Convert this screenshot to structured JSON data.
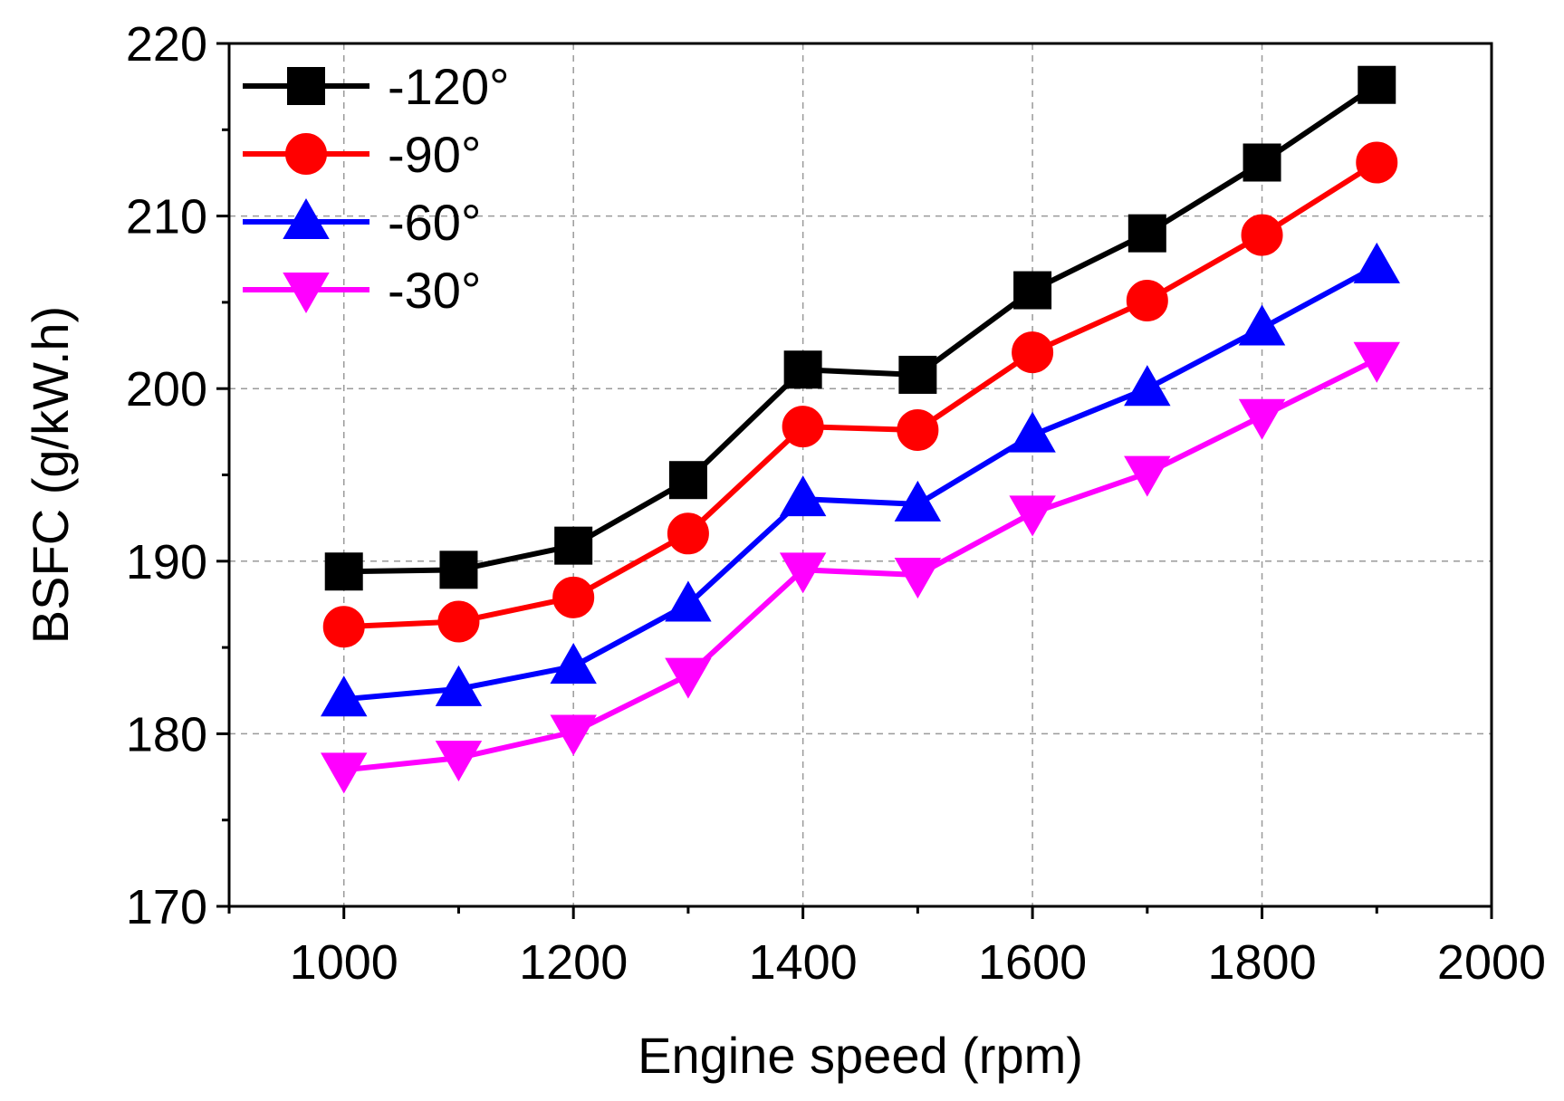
{
  "chart_data": {
    "type": "line",
    "title": "",
    "xlabel": "Engine speed (rpm)",
    "ylabel": "BSFC (g/kW.h)",
    "xlim": [
      900,
      2000
    ],
    "ylim": [
      170,
      220
    ],
    "xticks": [
      1000,
      1200,
      1400,
      1600,
      1800,
      2000
    ],
    "yticks": [
      170,
      180,
      190,
      200,
      210,
      220
    ],
    "grid": true,
    "legend_position": "top-left",
    "x": [
      1000,
      1100,
      1200,
      1300,
      1400,
      1500,
      1600,
      1700,
      1800,
      1900
    ],
    "series": [
      {
        "name": "-120°",
        "color": "#000000",
        "marker": "square",
        "values": [
          189.4,
          189.5,
          190.9,
          194.7,
          201.1,
          200.8,
          205.7,
          209.0,
          213.1,
          217.6
        ]
      },
      {
        "name": "-90°",
        "color": "#ff0000",
        "marker": "circle",
        "values": [
          186.2,
          186.5,
          187.9,
          191.6,
          197.8,
          197.6,
          202.1,
          205.1,
          208.9,
          213.1
        ]
      },
      {
        "name": "-60°",
        "color": "#0000ff",
        "marker": "triangle-up",
        "values": [
          182.0,
          182.6,
          183.9,
          187.5,
          193.6,
          193.3,
          197.3,
          200.0,
          203.5,
          207.1
        ]
      },
      {
        "name": "-30°",
        "color": "#ff00ff",
        "marker": "triangle-down",
        "values": [
          177.9,
          178.6,
          180.1,
          183.4,
          189.5,
          189.2,
          192.8,
          195.1,
          198.4,
          201.7
        ]
      }
    ]
  }
}
